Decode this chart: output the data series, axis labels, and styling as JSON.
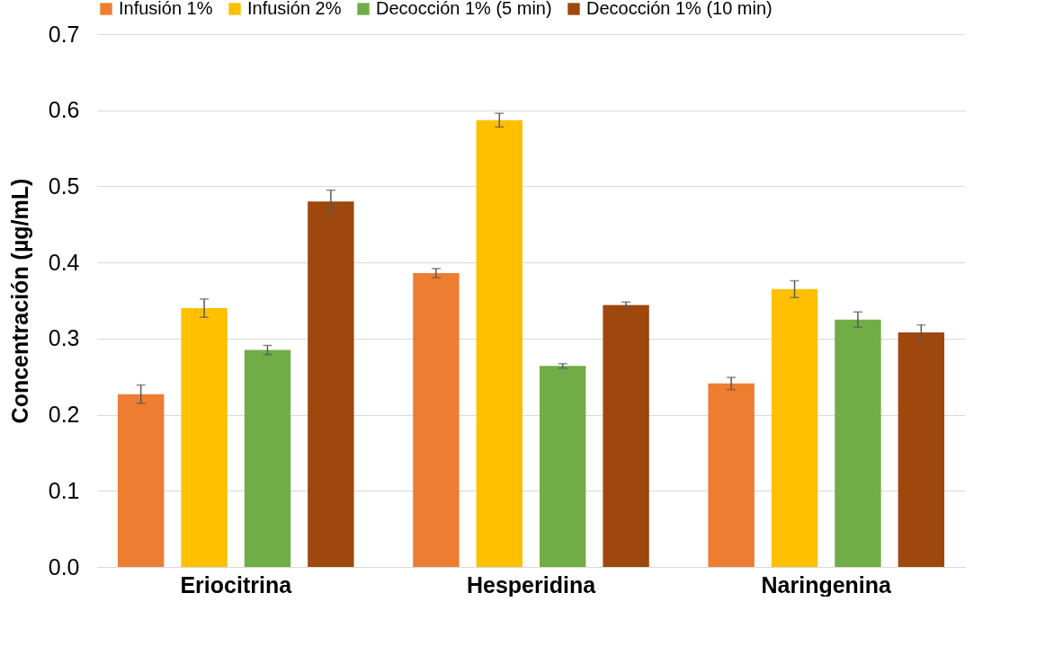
{
  "chart_data": {
    "type": "bar",
    "ylabel": "Concentración (µg/mL)",
    "categories": [
      "Eriocitrina",
      "Hesperidina",
      "Naringenina"
    ],
    "series": [
      {
        "name": "Infusión 1%",
        "color": "#ed7d31",
        "values": [
          0.227,
          0.386,
          0.241
        ],
        "errors": [
          0.012,
          0.006,
          0.008
        ]
      },
      {
        "name": "Infusión 2%",
        "color": "#ffc000",
        "values": [
          0.34,
          0.587,
          0.365
        ],
        "errors": [
          0.012,
          0.009,
          0.011
        ]
      },
      {
        "name": "Decocción 1% (5 min)",
        "color": "#70ad47",
        "values": [
          0.285,
          0.264,
          0.325
        ],
        "errors": [
          0.006,
          0.003,
          0.01
        ]
      },
      {
        "name": "Decocción 1% (10 min)",
        "color": "#9e480e",
        "values": [
          0.48,
          0.344,
          0.308
        ],
        "errors": [
          0.015,
          0.004,
          0.01
        ]
      }
    ],
    "ylim": [
      0,
      0.7
    ],
    "yticks": [
      {
        "value": 0,
        "label": "0.0"
      },
      {
        "value": 0.1,
        "label": "0.1"
      },
      {
        "value": 0.2,
        "label": "0.2"
      },
      {
        "value": 0.3,
        "label": "0.3"
      },
      {
        "value": 0.4,
        "label": "0.4"
      },
      {
        "value": 0.5,
        "label": "0.5"
      },
      {
        "value": 0.6,
        "label": "0.6"
      },
      {
        "value": 0.7,
        "label": "0.7"
      }
    ],
    "grid": "y",
    "legend": "top"
  }
}
